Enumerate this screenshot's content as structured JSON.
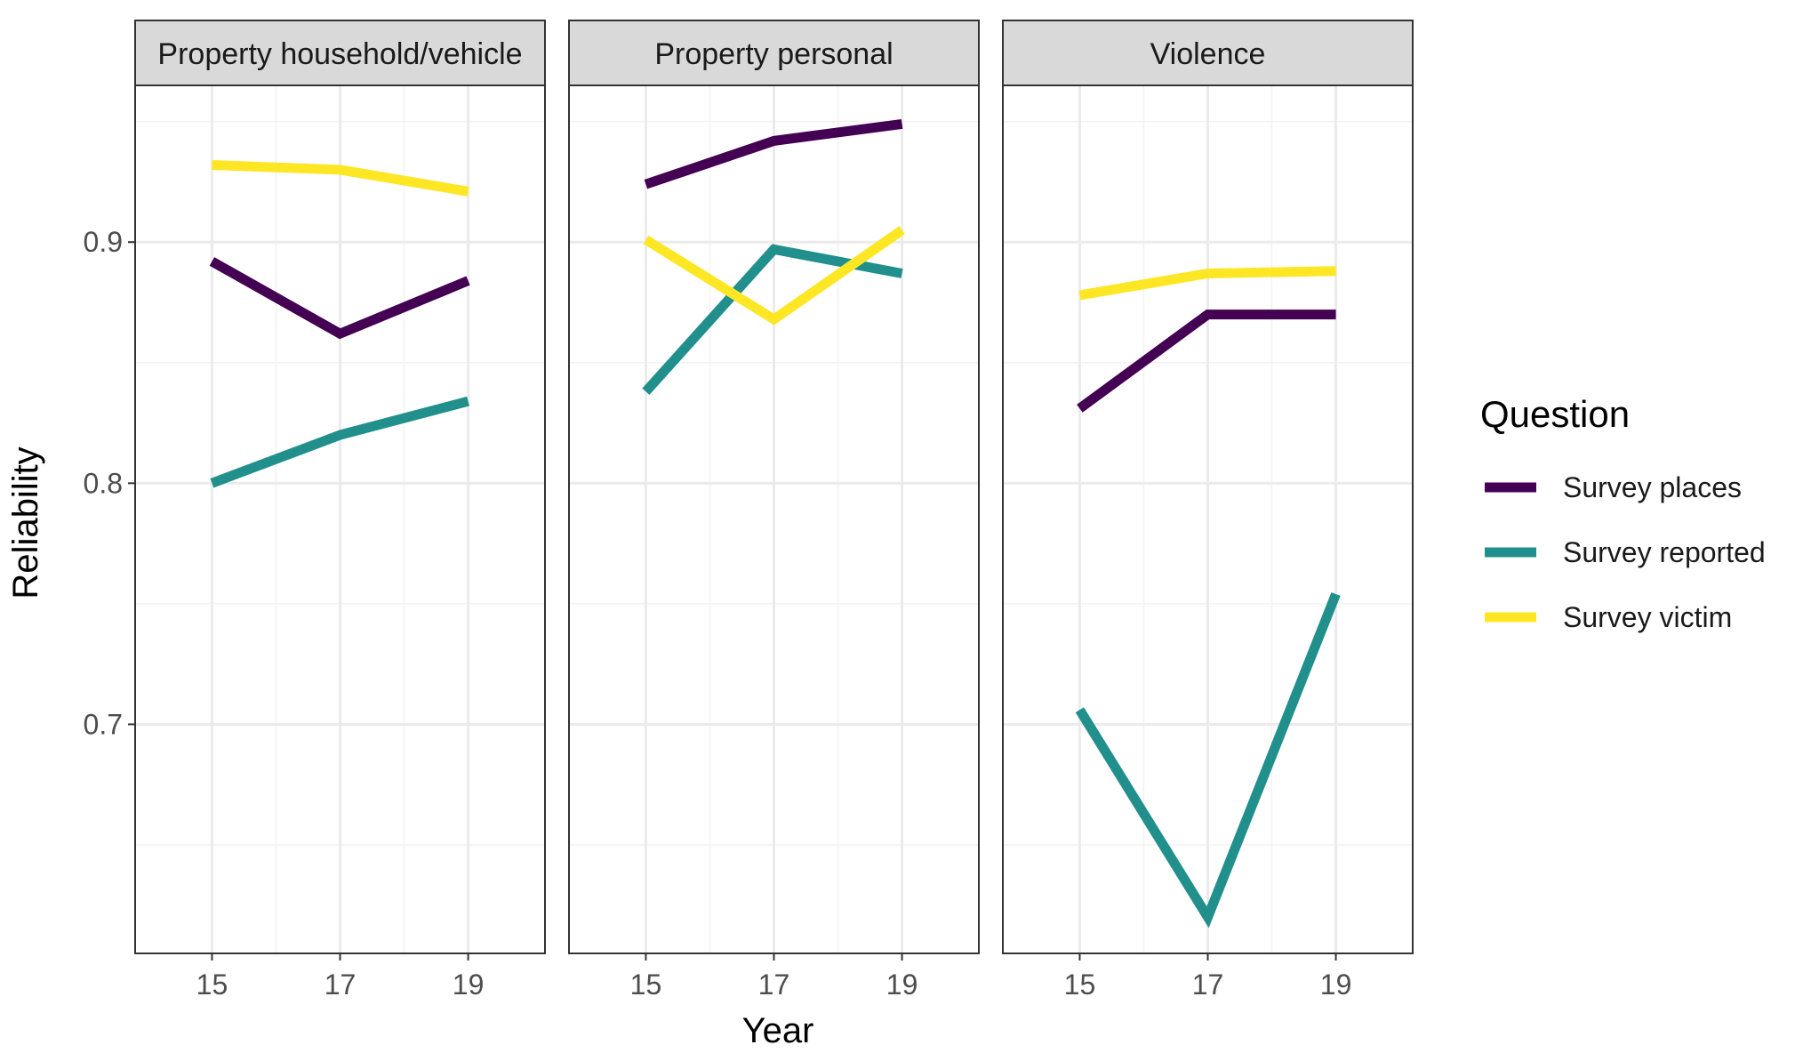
{
  "chart_data": {
    "type": "line",
    "facet_by": "crime type",
    "facets": [
      "Property household/vehicle",
      "Property personal",
      "Violence"
    ],
    "x": [
      15,
      17,
      19
    ],
    "x_tick_labels": [
      "15",
      "17",
      "19"
    ],
    "xlabel": "Year",
    "ylabel": "Reliability",
    "ylim": [
      0.605,
      0.965
    ],
    "y_ticks": [
      0.7,
      0.8,
      0.9
    ],
    "y_tick_labels": [
      "0.7",
      "0.8",
      "0.9"
    ],
    "grid": true,
    "legend": {
      "title": "Question",
      "position": "right",
      "entries": [
        "Survey places",
        "Survey reported",
        "Survey victim"
      ]
    },
    "series": [
      {
        "name": "Survey places",
        "color": "#440154",
        "values_by_facet": [
          [
            0.892,
            0.862,
            0.884
          ],
          [
            0.924,
            0.942,
            0.949
          ],
          [
            0.831,
            0.87,
            0.87
          ]
        ]
      },
      {
        "name": "Survey reported",
        "color": "#21908C",
        "values_by_facet": [
          [
            0.8,
            0.82,
            0.834
          ],
          [
            0.838,
            0.897,
            0.887
          ],
          [
            0.706,
            0.62,
            0.754
          ]
        ]
      },
      {
        "name": "Survey victim",
        "color": "#FDE725",
        "values_by_facet": [
          [
            0.932,
            0.93,
            0.921
          ],
          [
            0.901,
            0.868,
            0.905
          ],
          [
            0.878,
            0.887,
            0.888
          ]
        ]
      }
    ]
  }
}
